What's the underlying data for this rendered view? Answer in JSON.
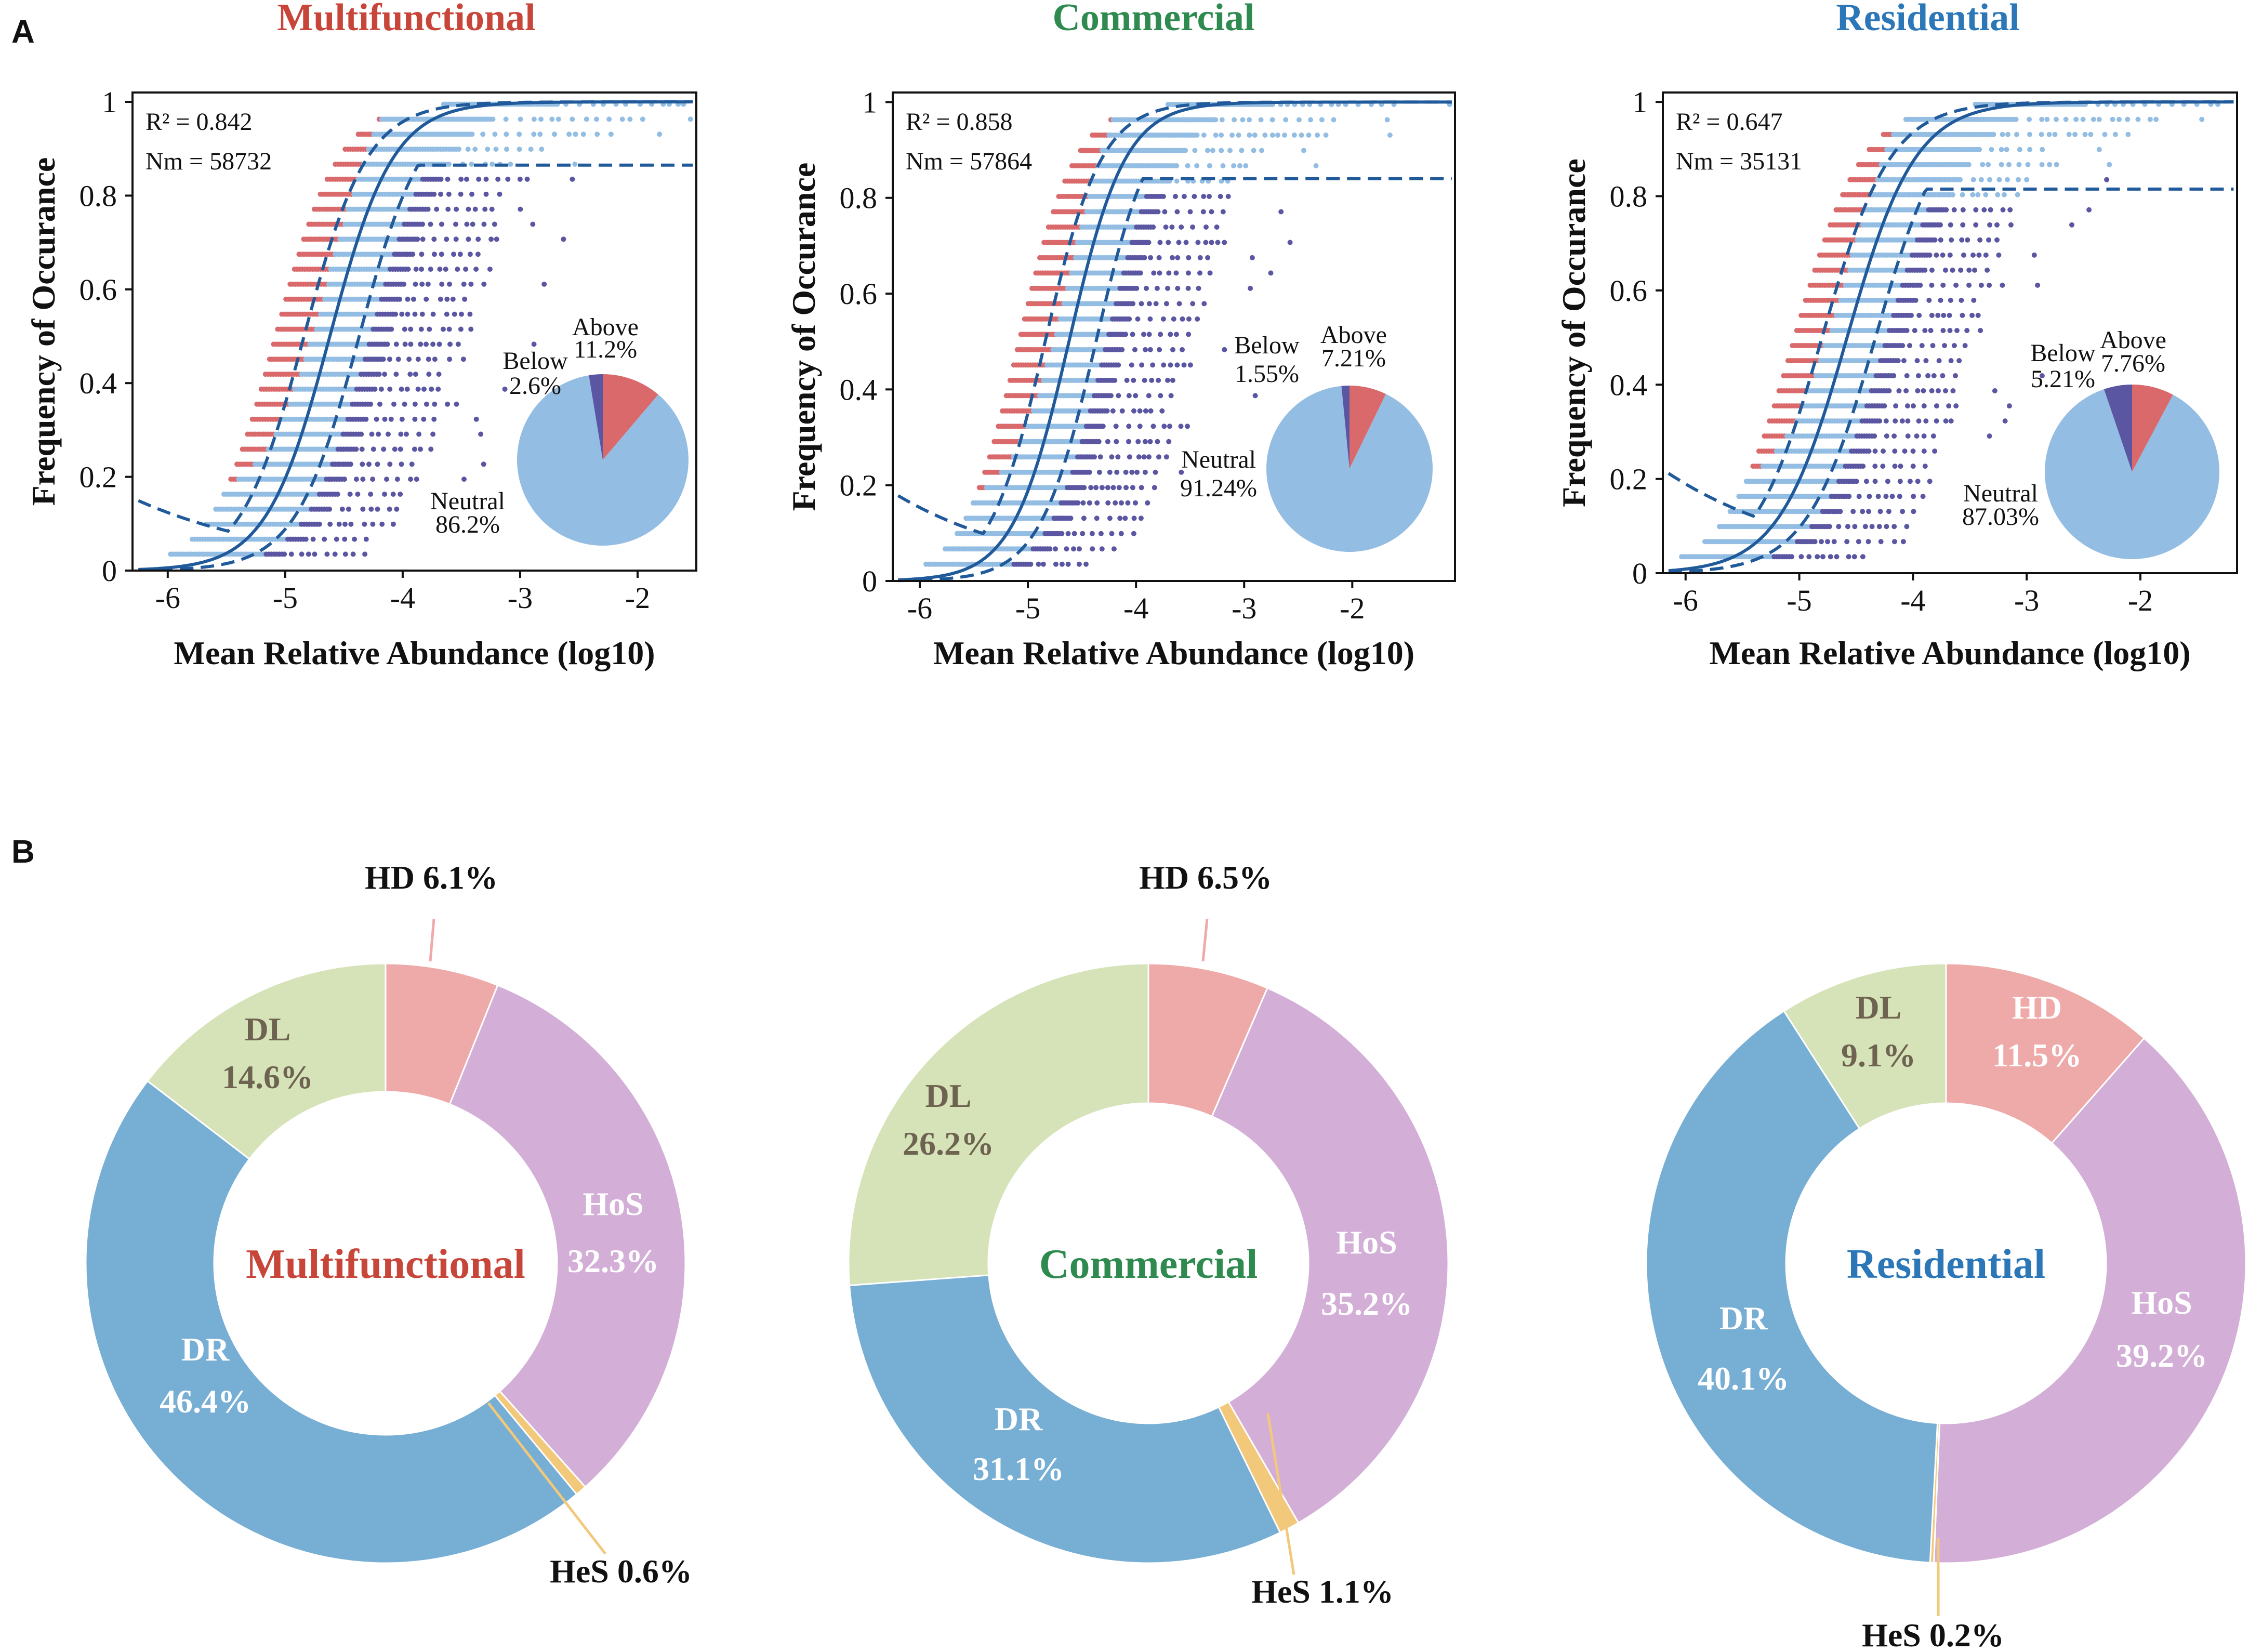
{
  "colors": {
    "title_multifunctional": "#c8453a",
    "title_commercial": "#2e8a4e",
    "title_residential": "#2c77b8",
    "neutral": "#93bde2",
    "above": "#d9696b",
    "below": "#5a56a2",
    "fit": "#215a9a",
    "HD": "#eeaaa9",
    "HoS": "#d3afd8",
    "HeS": "#f2c87a",
    "DR": "#77aed4",
    "DL": "#d6e3b8"
  },
  "panel_labels": {
    "a": "A",
    "b": "B"
  },
  "chart_data": [
    {
      "type": "scatter",
      "panel": "A",
      "title": "Multifunctional",
      "xlabel": "Mean Relative Abundance (log10)",
      "ylabel": "Frequency of Occurance",
      "xlim": [
        -6.3,
        -1.5
      ],
      "ylim": [
        0,
        1.02
      ],
      "xticks": [
        "-6",
        "-5",
        "-4",
        "-3",
        "-2"
      ],
      "yticks": [
        "0",
        "0.2",
        "0.4",
        "0.6",
        "0.8",
        "1"
      ],
      "stats": {
        "r2": "R² = 0.842",
        "nm": "Nm = 58732"
      },
      "fit": {
        "center": -4.62,
        "scale": 0.27,
        "upper_plateau": 0.865,
        "lower_start": 0.155
      },
      "pie": [
        {
          "name": "Neutral",
          "label": "Neutral",
          "pct_label": "86.2%",
          "value": 86.2
        },
        {
          "name": "Below",
          "label": "Below",
          "pct_label": "2.6%",
          "value": 2.6
        },
        {
          "name": "Above",
          "label": "Above",
          "pct_label": "11.2%",
          "value": 11.2
        }
      ]
    },
    {
      "type": "scatter",
      "panel": "A",
      "title": "Commercial",
      "xlabel": "Mean Relative Abundance (log10)",
      "ylabel": "Frequency of Occurance",
      "xlim": [
        -6.25,
        -1.05
      ],
      "ylim": [
        0,
        1.02
      ],
      "xticks": [
        "-6",
        "-5",
        "-4",
        "-3",
        "-2"
      ],
      "yticks": [
        "0",
        "0.2",
        "0.4",
        "0.6",
        "0.8",
        "1"
      ],
      "stats": {
        "r2": "R² = 0.858",
        "nm": "Nm = 57864"
      },
      "fit": {
        "center": -4.62,
        "scale": 0.26,
        "upper_plateau": 0.84,
        "lower_start": 0.185
      },
      "pie": [
        {
          "name": "Neutral",
          "label": "Neutral",
          "pct_label": "91.24%",
          "value": 91.24
        },
        {
          "name": "Below",
          "label": "Below",
          "pct_label": "1.55%",
          "value": 1.55
        },
        {
          "name": "Above",
          "label": "Above",
          "pct_label": "7.21%",
          "value": 7.21
        }
      ]
    },
    {
      "type": "scatter",
      "panel": "A",
      "title": "Residential",
      "xlabel": "Mean Relative Abundance (log10)",
      "ylabel": "Frequency of Occurance",
      "xlim": [
        -6.2,
        -1.15
      ],
      "ylim": [
        0,
        1.02
      ],
      "xticks": [
        "-6",
        "-5",
        "-4",
        "-3",
        "-2"
      ],
      "yticks": [
        "0",
        "0.2",
        "0.4",
        "0.6",
        "0.8",
        "1"
      ],
      "stats": {
        "r2": "R² = 0.647",
        "nm": "Nm = 35131"
      },
      "fit": {
        "center": -4.58,
        "scale": 0.3,
        "upper_plateau": 0.815,
        "lower_start": 0.22
      },
      "pie": [
        {
          "name": "Neutral",
          "label": "Neutral",
          "pct_label": "87.03%",
          "value": 87.03
        },
        {
          "name": "Below",
          "label": "Below",
          "pct_label": "5.21%",
          "value": 5.21
        },
        {
          "name": "Above",
          "label": "Above",
          "pct_label": "7.76%",
          "value": 7.76
        }
      ]
    },
    {
      "type": "pie",
      "panel": "B",
      "title": "Multifunctional",
      "slices": [
        {
          "name": "HD",
          "label": "HD",
          "pct_label": "6.1%",
          "value": 6.1
        },
        {
          "name": "HoS",
          "label": "HoS",
          "pct_label": "32.3%",
          "value": 32.3
        },
        {
          "name": "HeS",
          "label": "HeS",
          "pct_label": "0.6%",
          "value": 0.6
        },
        {
          "name": "DR",
          "label": "DR",
          "pct_label": "46.4%",
          "value": 46.4
        },
        {
          "name": "DL",
          "label": "DL",
          "pct_label": "14.6%",
          "value": 14.6
        }
      ]
    },
    {
      "type": "pie",
      "panel": "B",
      "title": "Commercial",
      "slices": [
        {
          "name": "HD",
          "label": "HD",
          "pct_label": "6.5%",
          "value": 6.5
        },
        {
          "name": "HoS",
          "label": "HoS",
          "pct_label": "35.2%",
          "value": 35.2
        },
        {
          "name": "HeS",
          "label": "HeS",
          "pct_label": "1.1%",
          "value": 1.1
        },
        {
          "name": "DR",
          "label": "DR",
          "pct_label": "31.1%",
          "value": 31.1
        },
        {
          "name": "DL",
          "label": "DL",
          "pct_label": "26.2%",
          "value": 26.2
        }
      ]
    },
    {
      "type": "pie",
      "panel": "B",
      "title": "Residential",
      "slices": [
        {
          "name": "HD",
          "label": "HD",
          "pct_label": "11.5%",
          "value": 11.5
        },
        {
          "name": "HoS",
          "label": "HoS",
          "pct_label": "39.2%",
          "value": 39.2
        },
        {
          "name": "HeS",
          "label": "HeS",
          "pct_label": "0.2%",
          "value": 0.2
        },
        {
          "name": "DR",
          "label": "DR",
          "pct_label": "40.1%",
          "value": 40.1
        },
        {
          "name": "DL",
          "label": "DL",
          "pct_label": "9.1%",
          "value": 9.1
        }
      ]
    }
  ]
}
